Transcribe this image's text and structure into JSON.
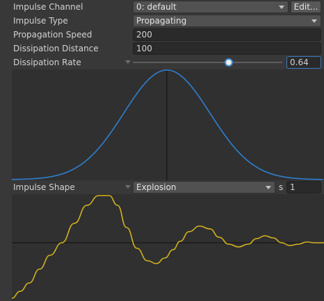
{
  "inspector": {
    "impulse_channel": {
      "label": "Impulse Channel",
      "value": "0: default",
      "edit_label": "Edit..."
    },
    "impulse_type": {
      "label": "Impulse Type",
      "value": "Propagating"
    },
    "propagation_speed": {
      "label": "Propagation Speed",
      "value": "200"
    },
    "dissipation_distance": {
      "label": "Dissipation Distance",
      "value": "100"
    },
    "dissipation_rate": {
      "label": "Dissipation Rate",
      "value": "0.64",
      "fraction": 0.64
    },
    "impulse_shape": {
      "label": "Impulse Shape",
      "value": "Explosion",
      "duration_unit": "s",
      "duration": "1"
    }
  },
  "colors": {
    "accent": "#3a8cdc",
    "dissipation_curve": "#2f7fd0",
    "impulse_curve": "#d4b21e",
    "panel_bg": "#383838",
    "graph_bg": "#303030"
  },
  "icons": [
    "dropdown-arrow-icon",
    "foldout-triangle-icon"
  ]
}
